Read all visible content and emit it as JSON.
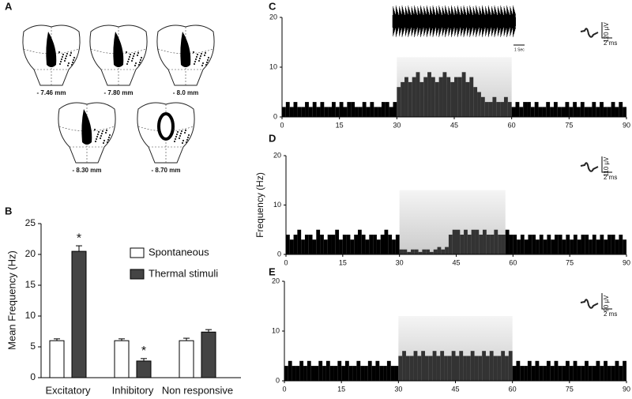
{
  "sections": {
    "label": "A",
    "levels": [
      "- 7.46 mm",
      "- 7.80 mm",
      "- 8.0 mm",
      "- 8.30 mm",
      "- 8.70 mm"
    ]
  },
  "chart_data": [
    {
      "type": "bar",
      "label": "B",
      "ylabel": "Mean Frequency (Hz)",
      "categories": [
        "Excitatory",
        "Inhibitory",
        "Non responsive"
      ],
      "series": [
        {
          "name": "Spontaneous",
          "color": "#ffffff",
          "values": [
            6,
            6,
            6
          ],
          "errors": [
            0.3,
            0.3,
            0.4
          ],
          "labels": [
            null,
            null,
            null
          ]
        },
        {
          "name": "Thermal stimuli",
          "color": "#444444",
          "values": [
            20.5,
            2.7,
            7.4
          ],
          "errors": [
            0.9,
            0.4,
            0.4
          ],
          "labels": [
            "*",
            "*",
            null
          ]
        }
      ],
      "ylim": [
        0,
        25
      ],
      "yticks": [
        0,
        5,
        10,
        15,
        20,
        25
      ]
    },
    {
      "type": "histogram",
      "label": "C",
      "scale_labels": [
        "120 µV",
        "2 ms"
      ],
      "inset_scale": "1 Sec",
      "bins": [
        0,
        1,
        2,
        3,
        4,
        5,
        6,
        7,
        8,
        9,
        10,
        11,
        12,
        13,
        14,
        15,
        16,
        17,
        18,
        19,
        20,
        21,
        22,
        23,
        24,
        25,
        26,
        27,
        28,
        29,
        30,
        31,
        32,
        33,
        34,
        35,
        36,
        37,
        38,
        39,
        40,
        41,
        42,
        43,
        44,
        45,
        46,
        47,
        48,
        49,
        50,
        51,
        52,
        53,
        54,
        55,
        56,
        57,
        58,
        59,
        60,
        61,
        62,
        63,
        64,
        65,
        66,
        67,
        68,
        69,
        70,
        71,
        72,
        73,
        74,
        75,
        76,
        77,
        78,
        79,
        80,
        81,
        82,
        83,
        84,
        85,
        86,
        87,
        88,
        89,
        90
      ],
      "values": [
        2,
        3,
        2,
        3,
        2,
        2,
        3,
        2,
        3,
        2,
        3,
        2,
        2,
        3,
        2,
        3,
        2,
        3,
        3,
        2,
        2,
        3,
        2,
        3,
        2,
        2,
        3,
        3,
        2,
        3,
        6,
        7,
        8,
        7,
        8,
        9,
        7,
        8,
        9,
        8,
        7,
        8,
        9,
        8,
        7,
        8,
        8,
        9,
        7,
        8,
        6,
        5,
        4,
        3,
        3,
        4,
        3,
        3,
        4,
        3,
        2,
        3,
        2,
        3,
        3,
        2,
        3,
        2,
        2,
        3,
        2,
        3,
        2,
        2,
        3,
        2,
        3,
        2,
        3,
        2,
        2,
        3,
        2,
        3,
        2,
        2,
        3,
        2,
        3,
        2
      ],
      "stimulus": {
        "xlim": [
          30,
          60
        ],
        "top": 12
      },
      "xlim": [
        0,
        90
      ],
      "xticks": [
        0,
        15,
        30,
        45,
        60,
        75,
        90
      ],
      "ylim": [
        0,
        20
      ],
      "yticks": [
        0,
        10,
        20
      ]
    },
    {
      "type": "histogram",
      "label": "D",
      "ylabel": "Frequency (Hz)",
      "scale_labels": [
        "110 µV",
        "2 ms"
      ],
      "bins": [
        0,
        1,
        2,
        3,
        4,
        5,
        6,
        7,
        8,
        9,
        10,
        11,
        12,
        13,
        14,
        15,
        16,
        17,
        18,
        19,
        20,
        21,
        22,
        23,
        24,
        25,
        26,
        27,
        28,
        29,
        30,
        31,
        32,
        33,
        34,
        35,
        36,
        37,
        38,
        39,
        40,
        41,
        42,
        43,
        44,
        45,
        46,
        47,
        48,
        49,
        50,
        51,
        52,
        53,
        54,
        55,
        56,
        57,
        58,
        59,
        60,
        61,
        62,
        63,
        64,
        65,
        66,
        67,
        68,
        69,
        70,
        71,
        72,
        73,
        74,
        75,
        76,
        77,
        78,
        79,
        80,
        81,
        82,
        83,
        84,
        85,
        86,
        87,
        88,
        89,
        90
      ],
      "values": [
        4,
        3,
        4,
        5,
        3,
        4,
        4,
        3,
        5,
        4,
        3,
        4,
        4,
        5,
        3,
        4,
        4,
        3,
        4,
        5,
        4,
        3,
        4,
        4,
        3,
        4,
        5,
        4,
        3,
        4,
        1,
        1,
        0.5,
        1,
        1,
        0.5,
        1,
        1,
        0.5,
        1,
        1.5,
        1,
        1.5,
        4,
        5,
        5,
        4,
        5,
        4,
        5,
        5,
        4,
        5,
        4,
        4,
        5,
        4,
        4,
        5,
        4,
        4,
        3,
        4,
        3,
        4,
        4,
        3,
        4,
        3,
        4,
        3,
        4,
        4,
        3,
        4,
        3,
        4,
        3,
        4,
        4,
        3,
        4,
        3,
        4,
        3,
        4,
        4,
        3,
        4,
        3
      ],
      "stimulus": {
        "xlim": [
          30,
          58
        ],
        "top": 13
      },
      "xlim": [
        0,
        90
      ],
      "xticks": [
        0,
        15,
        30,
        45,
        60,
        75,
        90
      ],
      "ylim": [
        0,
        20
      ],
      "yticks": [
        0,
        10,
        20
      ]
    },
    {
      "type": "histogram",
      "label": "E",
      "scale_labels": [
        "90 µV",
        "2 ms"
      ],
      "bins": [
        0,
        1,
        2,
        3,
        4,
        5,
        6,
        7,
        8,
        9,
        10,
        11,
        12,
        13,
        14,
        15,
        16,
        17,
        18,
        19,
        20,
        21,
        22,
        23,
        24,
        25,
        26,
        27,
        28,
        29,
        30,
        31,
        32,
        33,
        34,
        35,
        36,
        37,
        38,
        39,
        40,
        41,
        42,
        43,
        44,
        45,
        46,
        47,
        48,
        49,
        50,
        51,
        52,
        53,
        54,
        55,
        56,
        57,
        58,
        59,
        60,
        61,
        62,
        63,
        64,
        65,
        66,
        67,
        68,
        69,
        70,
        71,
        72,
        73,
        74,
        75,
        76,
        77,
        78,
        79,
        80,
        81,
        82,
        83,
        84,
        85,
        86,
        87,
        88,
        89,
        90
      ],
      "values": [
        3,
        4,
        3,
        3,
        4,
        3,
        4,
        3,
        3,
        4,
        3,
        4,
        3,
        3,
        4,
        3,
        4,
        3,
        3,
        4,
        3,
        3,
        4,
        3,
        4,
        3,
        3,
        4,
        3,
        3,
        5,
        6,
        5,
        5,
        6,
        5,
        6,
        5,
        5,
        6,
        5,
        6,
        5,
        5,
        6,
        5,
        6,
        5,
        5,
        6,
        5,
        5,
        6,
        5,
        6,
        5,
        5,
        6,
        5,
        6,
        3,
        4,
        3,
        3,
        4,
        3,
        4,
        3,
        3,
        4,
        3,
        4,
        3,
        3,
        4,
        3,
        4,
        3,
        3,
        4,
        3,
        3,
        4,
        3,
        4,
        3,
        3,
        4,
        3,
        4
      ],
      "stimulus": {
        "xlim": [
          30,
          60
        ],
        "top": 13
      },
      "xlim": [
        0,
        90
      ],
      "xticks": [
        0,
        15,
        30,
        45,
        60,
        75,
        90
      ],
      "ylim": [
        0,
        20
      ],
      "yticks": [
        0,
        10,
        20
      ]
    }
  ]
}
